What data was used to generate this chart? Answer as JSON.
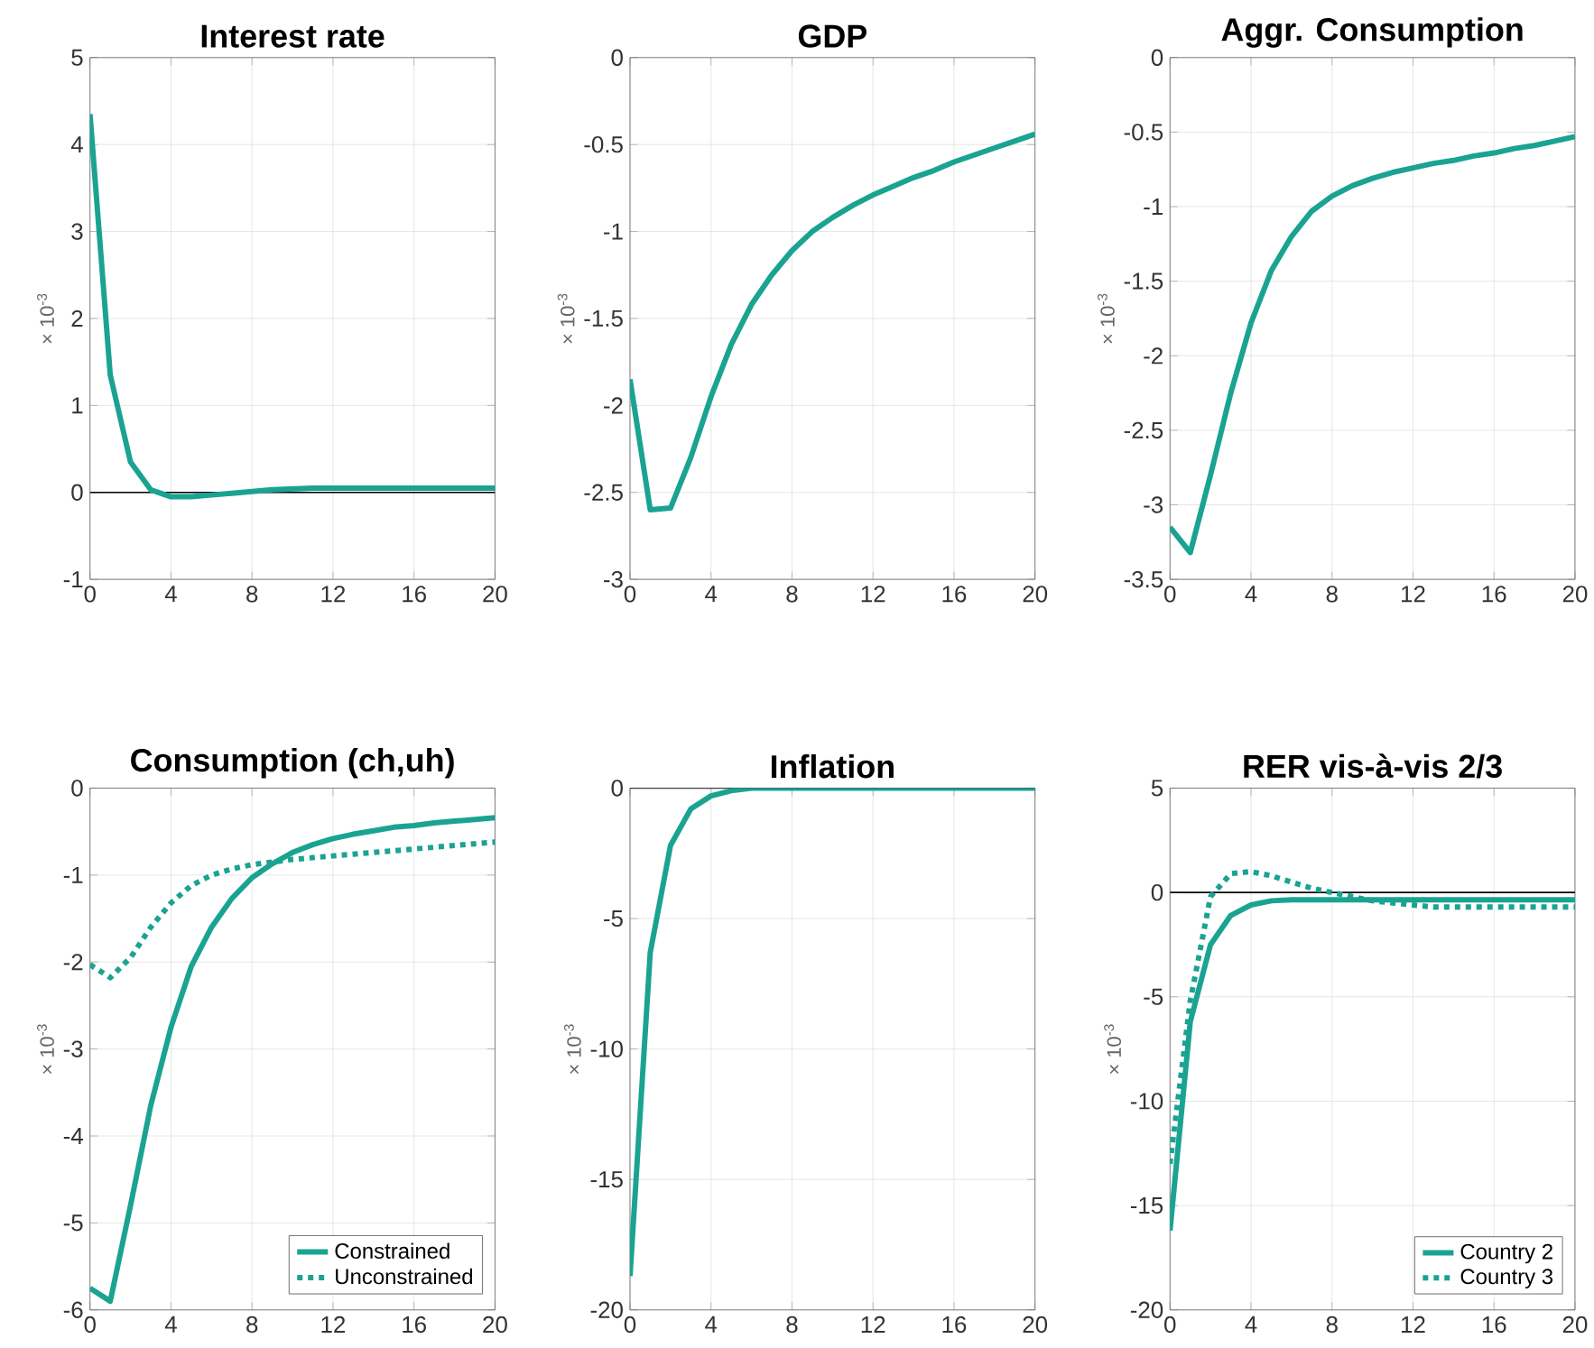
{
  "chart_data": [
    {
      "type": "line",
      "title": "Interest rate",
      "ylabel": "× 10$^{-3}$",
      "x": [
        0,
        1,
        2,
        3,
        4,
        5,
        6,
        7,
        8,
        9,
        10,
        11,
        12,
        13,
        14,
        15,
        16,
        17,
        18,
        19,
        20
      ],
      "xlim": [
        0,
        20
      ],
      "xticks": [
        0,
        4,
        8,
        12,
        16,
        20
      ],
      "ylim": [
        -1,
        5
      ],
      "yticks": [
        -1,
        0,
        1,
        2,
        3,
        4,
        5
      ],
      "grid": true,
      "ref_lines": [
        {
          "axis": "y",
          "value": 0,
          "color": "#000000"
        }
      ],
      "series": [
        {
          "color": "#1aa392",
          "values": [
            4.35,
            1.35,
            0.35,
            0.03,
            -0.05,
            -0.05,
            -0.03,
            -0.01,
            0.01,
            0.03,
            0.04,
            0.05,
            0.05,
            0.05,
            0.05,
            0.05,
            0.05,
            0.05,
            0.05,
            0.05,
            0.05
          ]
        }
      ]
    },
    {
      "type": "line",
      "title": "GDP",
      "ylabel": "× 10$^{-3}$",
      "x": [
        0,
        1,
        2,
        3,
        4,
        5,
        6,
        7,
        8,
        9,
        10,
        11,
        12,
        13,
        14,
        15,
        16,
        17,
        18,
        19,
        20
      ],
      "xlim": [
        0,
        20
      ],
      "xticks": [
        0,
        4,
        8,
        12,
        16,
        20
      ],
      "ylim": [
        -3,
        0
      ],
      "yticks": [
        -3,
        -2.5,
        -2,
        -1.5,
        -1,
        -0.5,
        0
      ],
      "grid": true,
      "series": [
        {
          "color": "#1aa392",
          "values": [
            -1.85,
            -2.6,
            -2.59,
            -2.3,
            -1.95,
            -1.65,
            -1.42,
            -1.25,
            -1.11,
            -1.0,
            -0.92,
            -0.85,
            -0.79,
            -0.74,
            -0.69,
            -0.65,
            -0.6,
            -0.56,
            -0.52,
            -0.48,
            -0.44
          ]
        }
      ]
    },
    {
      "type": "line",
      "title": "Aggr. Consumption",
      "ylabel": "× 10$^{-3}$",
      "x": [
        0,
        1,
        2,
        3,
        4,
        5,
        6,
        7,
        8,
        9,
        10,
        11,
        12,
        13,
        14,
        15,
        16,
        17,
        18,
        19,
        20
      ],
      "xlim": [
        0,
        20
      ],
      "xticks": [
        0,
        4,
        8,
        12,
        16,
        20
      ],
      "ylim": [
        -3.5,
        0
      ],
      "yticks": [
        -3.5,
        -3,
        -2.5,
        -2,
        -1.5,
        -1,
        -0.5,
        0
      ],
      "grid": true,
      "series": [
        {
          "color": "#1aa392",
          "values": [
            -3.15,
            -3.32,
            -2.8,
            -2.25,
            -1.78,
            -1.43,
            -1.2,
            -1.03,
            -0.93,
            -0.86,
            -0.81,
            -0.77,
            -0.74,
            -0.71,
            -0.69,
            -0.66,
            -0.64,
            -0.61,
            -0.59,
            -0.56,
            -0.53
          ]
        }
      ]
    },
    {
      "type": "line",
      "title": "Consumption (ch,uh)",
      "ylabel": "× 10$^{-3}$",
      "x": [
        0,
        1,
        2,
        3,
        4,
        5,
        6,
        7,
        8,
        9,
        10,
        11,
        12,
        13,
        14,
        15,
        16,
        17,
        18,
        19,
        20
      ],
      "xlim": [
        0,
        20
      ],
      "xticks": [
        0,
        4,
        8,
        12,
        16,
        20
      ],
      "ylim": [
        -6,
        0
      ],
      "yticks": [
        -6,
        -5,
        -4,
        -3,
        -2,
        -1,
        0
      ],
      "grid": true,
      "legend": "bottom right",
      "series": [
        {
          "name": "Constrained",
          "color": "#1aa392",
          "line_style": "solid",
          "values": [
            -5.75,
            -5.9,
            -4.8,
            -3.65,
            -2.75,
            -2.05,
            -1.6,
            -1.27,
            -1.03,
            -0.87,
            -0.74,
            -0.65,
            -0.58,
            -0.53,
            -0.49,
            -0.45,
            -0.43,
            -0.4,
            -0.38,
            -0.36,
            -0.34
          ]
        },
        {
          "name": "Unconstrained",
          "color": "#1aa392",
          "line_style": "dotted",
          "values": [
            -2.03,
            -2.18,
            -1.95,
            -1.6,
            -1.32,
            -1.12,
            -1.0,
            -0.93,
            -0.88,
            -0.85,
            -0.82,
            -0.8,
            -0.78,
            -0.76,
            -0.74,
            -0.72,
            -0.7,
            -0.68,
            -0.66,
            -0.64,
            -0.62
          ]
        }
      ]
    },
    {
      "type": "line",
      "title": "Inflation",
      "ylabel": "× 10$^{-3}$",
      "x": [
        0,
        1,
        2,
        3,
        4,
        5,
        6,
        7,
        8,
        9,
        10,
        11,
        12,
        13,
        14,
        15,
        16,
        17,
        18,
        19,
        20
      ],
      "xlim": [
        0,
        20
      ],
      "xticks": [
        0,
        4,
        8,
        12,
        16,
        20
      ],
      "ylim": [
        -20,
        0
      ],
      "yticks": [
        -20,
        -15,
        -10,
        -5,
        0
      ],
      "grid": true,
      "ref_lines": [
        {
          "axis": "y",
          "value": 0,
          "color": "#000000"
        }
      ],
      "series": [
        {
          "color": "#1aa392",
          "values": [
            -18.7,
            -6.3,
            -2.2,
            -0.8,
            -0.3,
            -0.1,
            0,
            0,
            0,
            0,
            0,
            0,
            0,
            0,
            0,
            0,
            0,
            0,
            0,
            0,
            0
          ]
        }
      ]
    },
    {
      "type": "line",
      "title": "RER vis-à-vis 2/3",
      "ylabel": "× 10$^{-3}$",
      "x": [
        0,
        1,
        2,
        3,
        4,
        5,
        6,
        7,
        8,
        9,
        10,
        11,
        12,
        13,
        14,
        15,
        16,
        17,
        18,
        19,
        20
      ],
      "xlim": [
        0,
        20
      ],
      "xticks": [
        0,
        4,
        8,
        12,
        16,
        20
      ],
      "ylim": [
        -20,
        5
      ],
      "yticks": [
        -20,
        -15,
        -10,
        -5,
        0,
        5
      ],
      "grid": true,
      "legend": "bottom right",
      "ref_lines": [
        {
          "axis": "y",
          "value": 0,
          "color": "#000000"
        }
      ],
      "series": [
        {
          "name": "Country 2",
          "color": "#1aa392",
          "line_style": "solid",
          "values": [
            -16.2,
            -6.2,
            -2.5,
            -1.1,
            -0.6,
            -0.4,
            -0.35,
            -0.35,
            -0.35,
            -0.35,
            -0.35,
            -0.35,
            -0.35,
            -0.35,
            -0.35,
            -0.35,
            -0.35,
            -0.35,
            -0.35,
            -0.35,
            -0.35
          ]
        },
        {
          "name": "Country 3",
          "color": "#1aa392",
          "line_style": "dotted",
          "values": [
            -13,
            -5.2,
            -0.2,
            0.9,
            1.0,
            0.8,
            0.5,
            0.2,
            0,
            -0.2,
            -0.4,
            -0.5,
            -0.6,
            -0.7,
            -0.7,
            -0.7,
            -0.7,
            -0.7,
            -0.7,
            -0.7,
            -0.7
          ]
        }
      ]
    }
  ]
}
